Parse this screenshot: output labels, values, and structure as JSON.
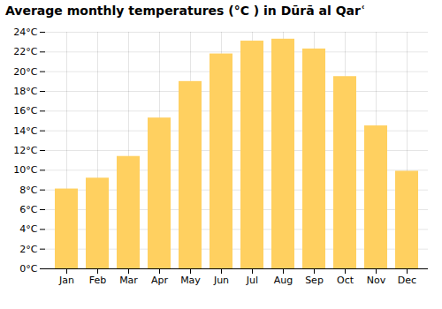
{
  "chart_data": {
    "type": "bar",
    "title": "Average monthly temperatures (°C ) in Dūrā al Qarʿ",
    "categories": [
      "Jan",
      "Feb",
      "Mar",
      "Apr",
      "May",
      "Jun",
      "Jul",
      "Aug",
      "Sep",
      "Oct",
      "Nov",
      "Dec"
    ],
    "values": [
      8.1,
      9.2,
      11.4,
      15.3,
      19.0,
      21.8,
      23.1,
      23.3,
      22.3,
      19.5,
      14.5,
      9.9
    ],
    "color": "#FFD060",
    "ylim": [
      0,
      24
    ],
    "yticks": [
      {
        "value": 0,
        "label": "0°C"
      },
      {
        "value": 2,
        "label": "2°C"
      },
      {
        "value": 4,
        "label": "4°C"
      },
      {
        "value": 6,
        "label": "6°C"
      },
      {
        "value": 8,
        "label": "8°C"
      },
      {
        "value": 10,
        "label": "10°C"
      },
      {
        "value": 12,
        "label": "12°C"
      },
      {
        "value": 14,
        "label": "14°C"
      },
      {
        "value": 16,
        "label": "16°C"
      },
      {
        "value": 18,
        "label": "18°C"
      },
      {
        "value": 20,
        "label": "20°C"
      },
      {
        "value": 22,
        "label": "22°C"
      },
      {
        "value": 24,
        "label": "24°C"
      }
    ],
    "grid": true
  }
}
